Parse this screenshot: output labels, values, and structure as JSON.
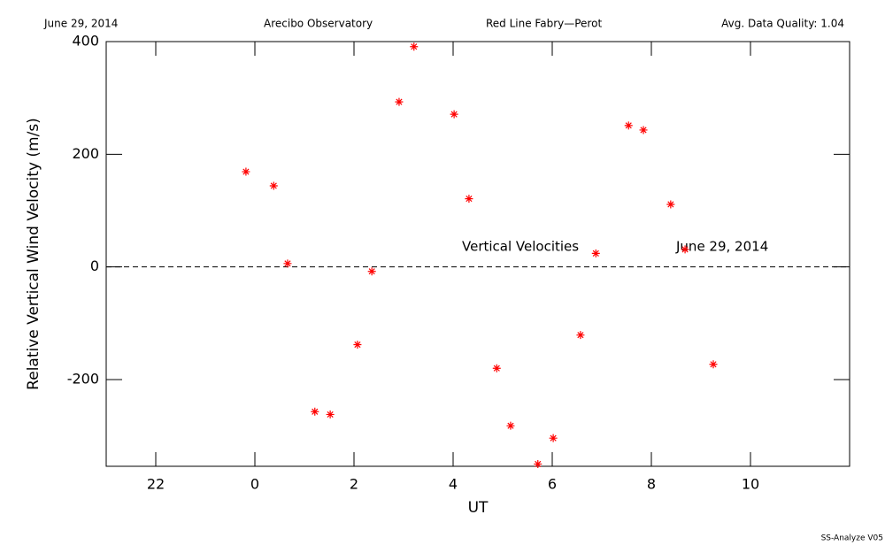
{
  "chart_data": {
    "type": "scatter",
    "header": [
      "June 29, 2014",
      "Arecibo Observatory",
      "Red Line Fabry—Perot",
      "Avg. Data Quality: 1.04"
    ],
    "x_label": "UT",
    "y_label": "Relative Vertical Wind Velocity (m/s)",
    "annotations": [
      "Vertical Velocities",
      "June 29, 2014"
    ],
    "footer": "SS-Analyze V05",
    "color": "#ff0000",
    "hline": 0,
    "xlim": [
      -3,
      12
    ],
    "ylim": [
      -354,
      400
    ],
    "xticks": [
      {
        "value": -2,
        "label": "22"
      },
      0,
      2,
      4,
      6,
      8,
      10
    ],
    "yticks": [
      -200,
      0,
      200,
      400
    ],
    "x": [
      -0.18,
      0.38,
      0.66,
      1.21,
      1.52,
      2.07,
      2.36,
      2.91,
      3.21,
      4.02,
      4.32,
      4.88,
      5.16,
      5.71,
      6.02,
      6.57,
      6.88,
      7.54,
      7.84,
      8.39,
      8.68,
      9.25
    ],
    "values": [
      169,
      144,
      6,
      -257,
      -262,
      -138,
      -8,
      293,
      391,
      271,
      121,
      -180,
      -282,
      -350,
      -304,
      -121,
      24,
      251,
      243,
      111,
      31,
      -173
    ]
  }
}
